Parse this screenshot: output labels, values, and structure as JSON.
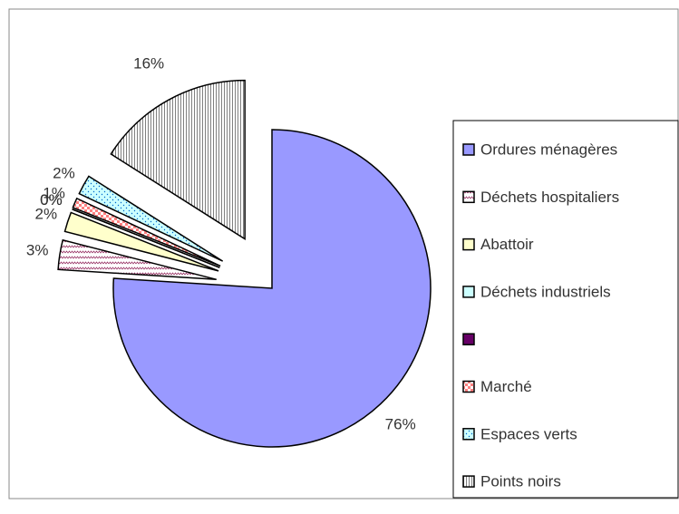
{
  "chart_data": {
    "type": "pie",
    "categories": [
      "Ordures ménagères",
      "Déchets hospitaliers",
      "Abattoir",
      "Déchets industriels",
      null,
      "Marché",
      "Espaces verts",
      "Points noirs"
    ],
    "values": [
      76,
      3,
      2,
      0,
      0,
      1,
      2,
      16
    ],
    "value_labels": [
      "76%",
      "3%",
      "2%",
      "0%",
      "0%",
      "1%",
      "2%",
      "16%"
    ],
    "colors": [
      "#9999ff",
      "#993366",
      "#ffffcc",
      "#ccffff",
      "#660066",
      "#ff8080",
      "#0066cc",
      "#ffffff"
    ],
    "legend": "right"
  }
}
